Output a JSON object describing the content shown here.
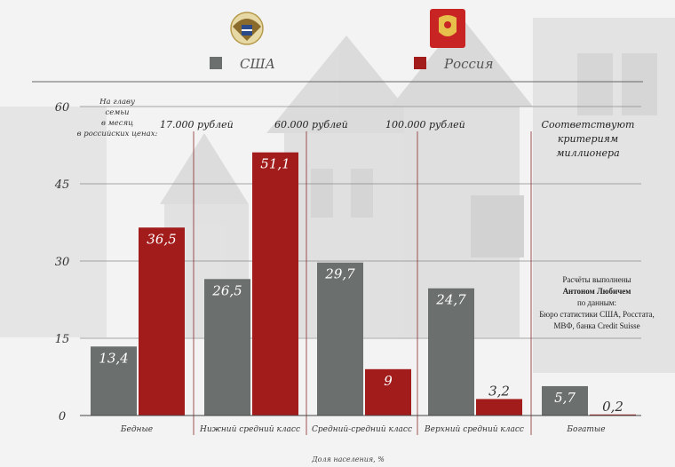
{
  "legend": [
    {
      "label": "США",
      "color": "#6b6f6e",
      "icon": "usa-coat-of-arms-icon"
    },
    {
      "label": "Россия",
      "color": "#a31c1c",
      "icon": "russia-coat-of-arms-icon"
    }
  ],
  "income_note": {
    "lines": [
      "На главу",
      "семьи",
      "в месяц",
      "в российских ценах:"
    ]
  },
  "thresholds": [
    "17.000 рублей",
    "60.000 рублей",
    "100.000 рублей"
  ],
  "millionaire_note": {
    "lines": [
      "Соответствуют",
      "критериям",
      "миллионера"
    ]
  },
  "credits": {
    "line1": "Расчёты выполнены",
    "author": "Антоном Любичем",
    "line3": "по данным:",
    "line4": "Бюро статистики США, Росстата,",
    "line5": "МВФ, банка Credit Suisse"
  },
  "footer_label": "Доля населения, %",
  "chart_data": {
    "type": "bar",
    "title": "",
    "xlabel": "Доля населения, %",
    "ylabel": "",
    "ylim": [
      0,
      60
    ],
    "yticks": [
      0,
      15,
      30,
      45,
      60
    ],
    "grid": true,
    "legend_position": "top",
    "categories": [
      "Бедные",
      "Нижний средний класс",
      "Средний-средний класс",
      "Верхний средний класс",
      "Богатые"
    ],
    "series": [
      {
        "name": "США",
        "color": "#6b6f6e",
        "values": [
          13.4,
          26.5,
          29.7,
          24.7,
          5.7
        ],
        "labels": [
          "13,4",
          "26,5",
          "29,7",
          "24,7",
          "5,7"
        ]
      },
      {
        "name": "Россия",
        "color": "#a31c1c",
        "values": [
          36.5,
          51.1,
          9,
          3.2,
          0.2
        ],
        "labels": [
          "36,5",
          "51,1",
          "9",
          "3,2",
          "0,2"
        ]
      }
    ]
  }
}
